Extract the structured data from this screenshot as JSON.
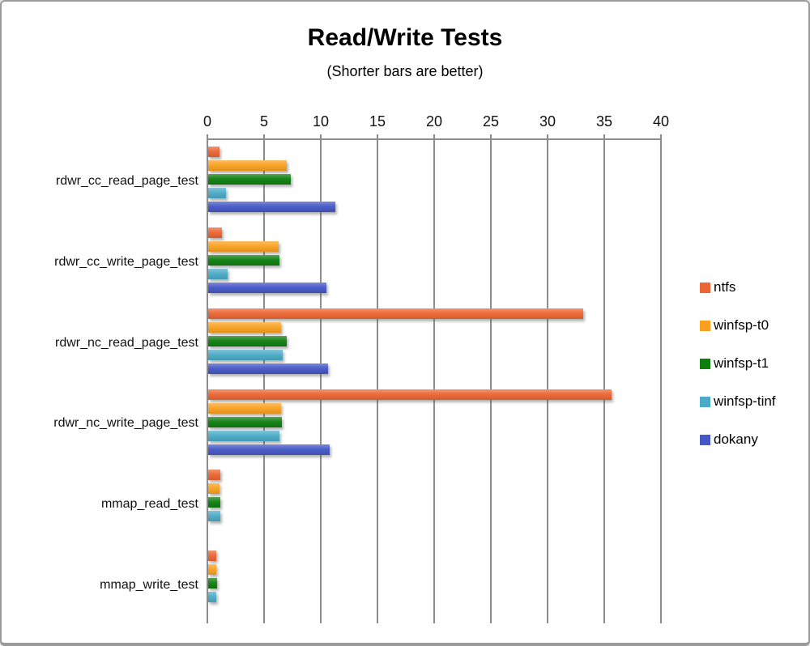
{
  "window": {
    "background": "#ffffff",
    "border_color": "#9a9a9a"
  },
  "chart_data": {
    "type": "bar",
    "orientation": "horizontal",
    "title": "Read/Write Tests",
    "subtitle": "(Shorter bars are better)",
    "value_axis": {
      "min": 0,
      "max": 40,
      "step": 5,
      "position": "top",
      "tick_labels": [
        "0",
        "5",
        "10",
        "15",
        "20",
        "25",
        "30",
        "35",
        "40"
      ]
    },
    "grid": true,
    "grid_color": "#8c8c8c",
    "legend_position": "right",
    "categories": [
      "rdwr_cc_read_page_test",
      "rdwr_cc_write_page_test",
      "rdwr_nc_read_page_test",
      "rdwr_nc_write_page_test",
      "mmap_read_test",
      "mmap_write_test"
    ],
    "series": [
      {
        "name": "ntfs",
        "color": "#EC6532",
        "values": [
          1.0,
          1.2,
          33.1,
          35.6,
          1.1,
          0.7
        ]
      },
      {
        "name": "winfsp-t0",
        "color": "#F9A11F",
        "values": [
          6.9,
          6.2,
          6.4,
          6.4,
          1.0,
          0.7
        ]
      },
      {
        "name": "winfsp-t1",
        "color": "#0E7E0E",
        "values": [
          7.3,
          6.3,
          6.9,
          6.5,
          1.1,
          0.8
        ]
      },
      {
        "name": "winfsp-tinf",
        "color": "#4AABC7",
        "values": [
          1.6,
          1.7,
          6.6,
          6.3,
          1.1,
          0.7
        ]
      },
      {
        "name": "dokany",
        "color": "#4457C6",
        "values": [
          11.2,
          10.4,
          10.6,
          10.7,
          0,
          0
        ]
      }
    ]
  }
}
